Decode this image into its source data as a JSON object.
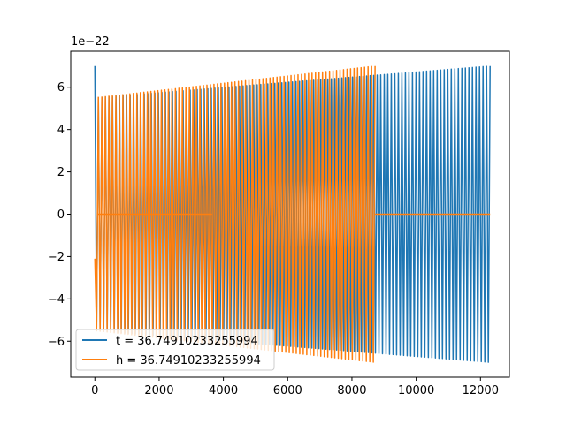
{
  "chart_data": {
    "type": "line",
    "title": "",
    "xlabel": "",
    "ylabel": "",
    "y_offset_text": "1e−22",
    "y_scale": 1e-22,
    "xlim": [
      -750,
      12900
    ],
    "ylim": [
      -7.7,
      7.7
    ],
    "xticks": [
      0,
      2000,
      4000,
      6000,
      8000,
      10000,
      12000
    ],
    "xtick_labels": [
      "0",
      "2000",
      "4000",
      "6000",
      "8000",
      "10000",
      "12000"
    ],
    "yticks": [
      -6,
      -4,
      -2,
      0,
      2,
      4,
      6
    ],
    "ytick_labels": [
      "−6",
      "−4",
      "−2",
      "0",
      "2",
      "4",
      "6"
    ],
    "grid": false,
    "legend_position": "lower-left",
    "series": [
      {
        "name": "t = 36.74910233255994",
        "color": "#1f77b4",
        "kind": "oscillation",
        "x_start": 0,
        "x_end": 12300,
        "periods": 112,
        "amp_start": 5.5,
        "amp_end": 7.0,
        "first_peak": 7.0,
        "flat_segments": []
      },
      {
        "name": "h = 36.74910233255994",
        "color": "#ff7f0e",
        "kind": "oscillation",
        "x_start": 0,
        "x_end": 8720,
        "periods": 80,
        "amp_start": 5.5,
        "amp_end": 7.0,
        "first_peak": -2.1,
        "flat_segments": [
          [
            100,
            3650
          ],
          [
            8720,
            12300
          ]
        ]
      }
    ]
  }
}
